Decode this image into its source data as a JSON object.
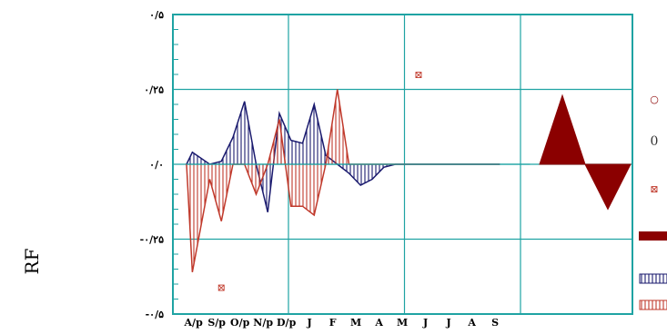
{
  "chart_data": {
    "type": "area",
    "ylabel": "RF",
    "ylim": [
      -0.5,
      0.5
    ],
    "ytick_labels": [
      "٠/۵",
      "٠/۲۵",
      "٠/٠",
      "-٠/۲۵",
      "-٠/۵"
    ],
    "ytick_values": [
      0.5,
      0.25,
      0.0,
      -0.25,
      -0.5
    ],
    "categories": [
      "A/p",
      "S/p",
      "O/p",
      "N/p",
      "D/p",
      "J",
      "F",
      "M",
      "A",
      "M",
      "J",
      "J",
      "A",
      "S"
    ],
    "series": [
      {
        "style": "vertical-hatch",
        "color": "#1a1a6e",
        "x": [
          0,
          0.25,
          1,
          1.5,
          2,
          2.5,
          3,
          3.5,
          4,
          4.5,
          5,
          5.5,
          6,
          6.5,
          7,
          7.5,
          8,
          8.5,
          9,
          9.5,
          10,
          10.5,
          11,
          11.5,
          12,
          12.5,
          13,
          13.5
        ],
        "values": [
          0.0,
          0.04,
          0.0,
          0.01,
          0.09,
          0.21,
          0.0,
          -0.16,
          0.17,
          0.08,
          0.07,
          0.2,
          0.03,
          0.0,
          -0.03,
          -0.07,
          -0.05,
          -0.01,
          0.0,
          0.0,
          0.0,
          0.0,
          0.0,
          0.0,
          0.0,
          0.0,
          0.0,
          0.0
        ]
      },
      {
        "style": "vertical-hatch",
        "color": "#c0392b",
        "x": [
          0,
          0.25,
          1,
          1.5,
          2,
          2.5,
          3,
          3.5,
          4,
          4.5,
          5,
          5.5,
          6,
          6.5,
          7,
          7.5,
          8,
          8.5,
          9,
          9.5,
          10,
          10.5,
          11,
          11.5,
          12,
          12.5,
          13,
          13.5
        ],
        "values": [
          0.0,
          -0.36,
          -0.05,
          -0.19,
          0.0,
          0.0,
          -0.1,
          0.0,
          0.15,
          -0.14,
          -0.14,
          -0.17,
          0.0,
          0.25,
          0.0,
          0.0,
          0.0,
          0.0,
          0.0,
          0.0,
          0.0,
          0.0,
          0.0,
          0.0,
          0.0,
          0.0,
          0.0,
          0.0
        ]
      }
    ],
    "markers": [
      {
        "x": 1.5,
        "y": -0.41,
        "symbol": "⊠"
      },
      {
        "x": 10,
        "y": 0.3,
        "symbol": "⊠"
      }
    ],
    "summary_shapes": [
      {
        "kind": "triangle-up",
        "value": 0.23,
        "color": "#8b0000"
      },
      {
        "kind": "triangle-down",
        "value": -0.15,
        "color": "#8b0000"
      }
    ],
    "legend_symbols": [
      "○",
      "0",
      "⊠"
    ],
    "grid": true
  }
}
